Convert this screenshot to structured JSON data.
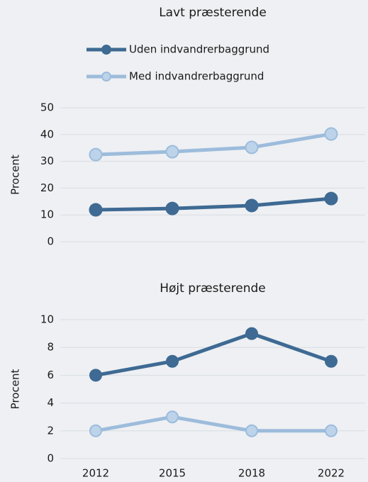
{
  "chart_data": [
    {
      "type": "line",
      "title": "Lavt præsterende",
      "ylabel": "Procent",
      "ylim": [
        0,
        50
      ],
      "yticks": [
        0,
        10,
        20,
        30,
        40,
        50
      ],
      "grid": true,
      "legend": "top",
      "series": [
        {
          "name": "Uden indvandrerbaggrund",
          "color": "#3e6a93",
          "values": [
            11.9,
            12.4,
            13.5,
            16.1
          ]
        },
        {
          "name": "Med indvandrerbaggrund",
          "color": "#9dbcdc",
          "values": [
            32.5,
            33.6,
            35.2,
            40.2
          ]
        }
      ]
    },
    {
      "type": "line",
      "title": "Højt præsterende",
      "ylabel": "Procent",
      "categories": [
        "2012",
        "2015",
        "2018",
        "2022"
      ],
      "ylim": [
        0,
        10
      ],
      "yticks": [
        0,
        2,
        4,
        6,
        8,
        10
      ],
      "grid": true,
      "series": [
        {
          "color": "#3e6a93",
          "values": [
            6,
            7,
            9,
            7
          ]
        },
        {
          "color": "#9dbcdc",
          "values": [
            2,
            3,
            2,
            2
          ]
        }
      ]
    }
  ]
}
